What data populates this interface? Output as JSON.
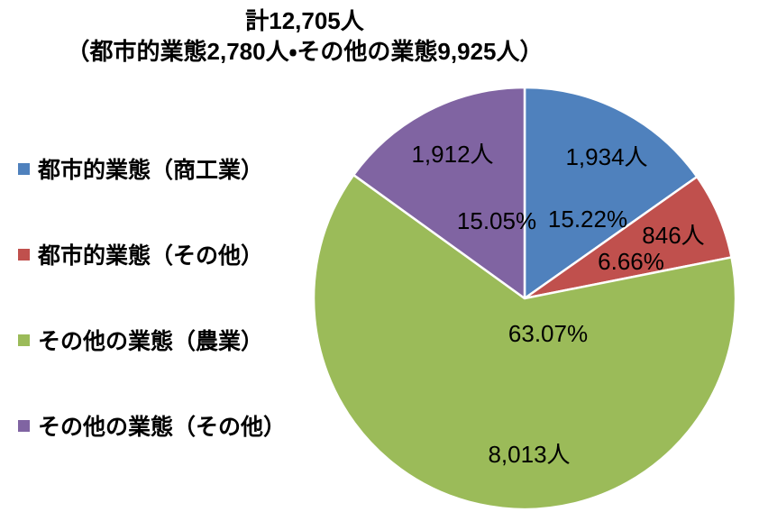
{
  "chart_data": {
    "type": "pie",
    "title": "計12,705人",
    "subtitle": "（都市的業態2,780人・その他の業態9,925人）",
    "totals": {
      "total_value": 12705,
      "urban_total_value": 2780,
      "other_total_value": 9925
    },
    "legend_position": "left",
    "start_angle_deg": 0,
    "direction": "clockwise",
    "slices": [
      {
        "label": "都市的業態（商工業）",
        "value": 1934,
        "percent": 15.22,
        "value_label": "1,934人",
        "percent_label": "15.22%",
        "color": "#4f81bd"
      },
      {
        "label": "都市的業態（その他）",
        "value": 846,
        "percent": 6.66,
        "value_label": "846人",
        "percent_label": "6.66%",
        "color": "#c0504d"
      },
      {
        "label": "その他の業態（農業）",
        "value": 8013,
        "percent": 63.07,
        "value_label": "8,013人",
        "percent_label": "63.07%",
        "color": "#9bbb59"
      },
      {
        "label": "その他の業態（その他）",
        "value": 1912,
        "percent": 15.05,
        "value_label": "1,912人",
        "percent_label": "15.05%",
        "color": "#8064a2"
      }
    ]
  }
}
